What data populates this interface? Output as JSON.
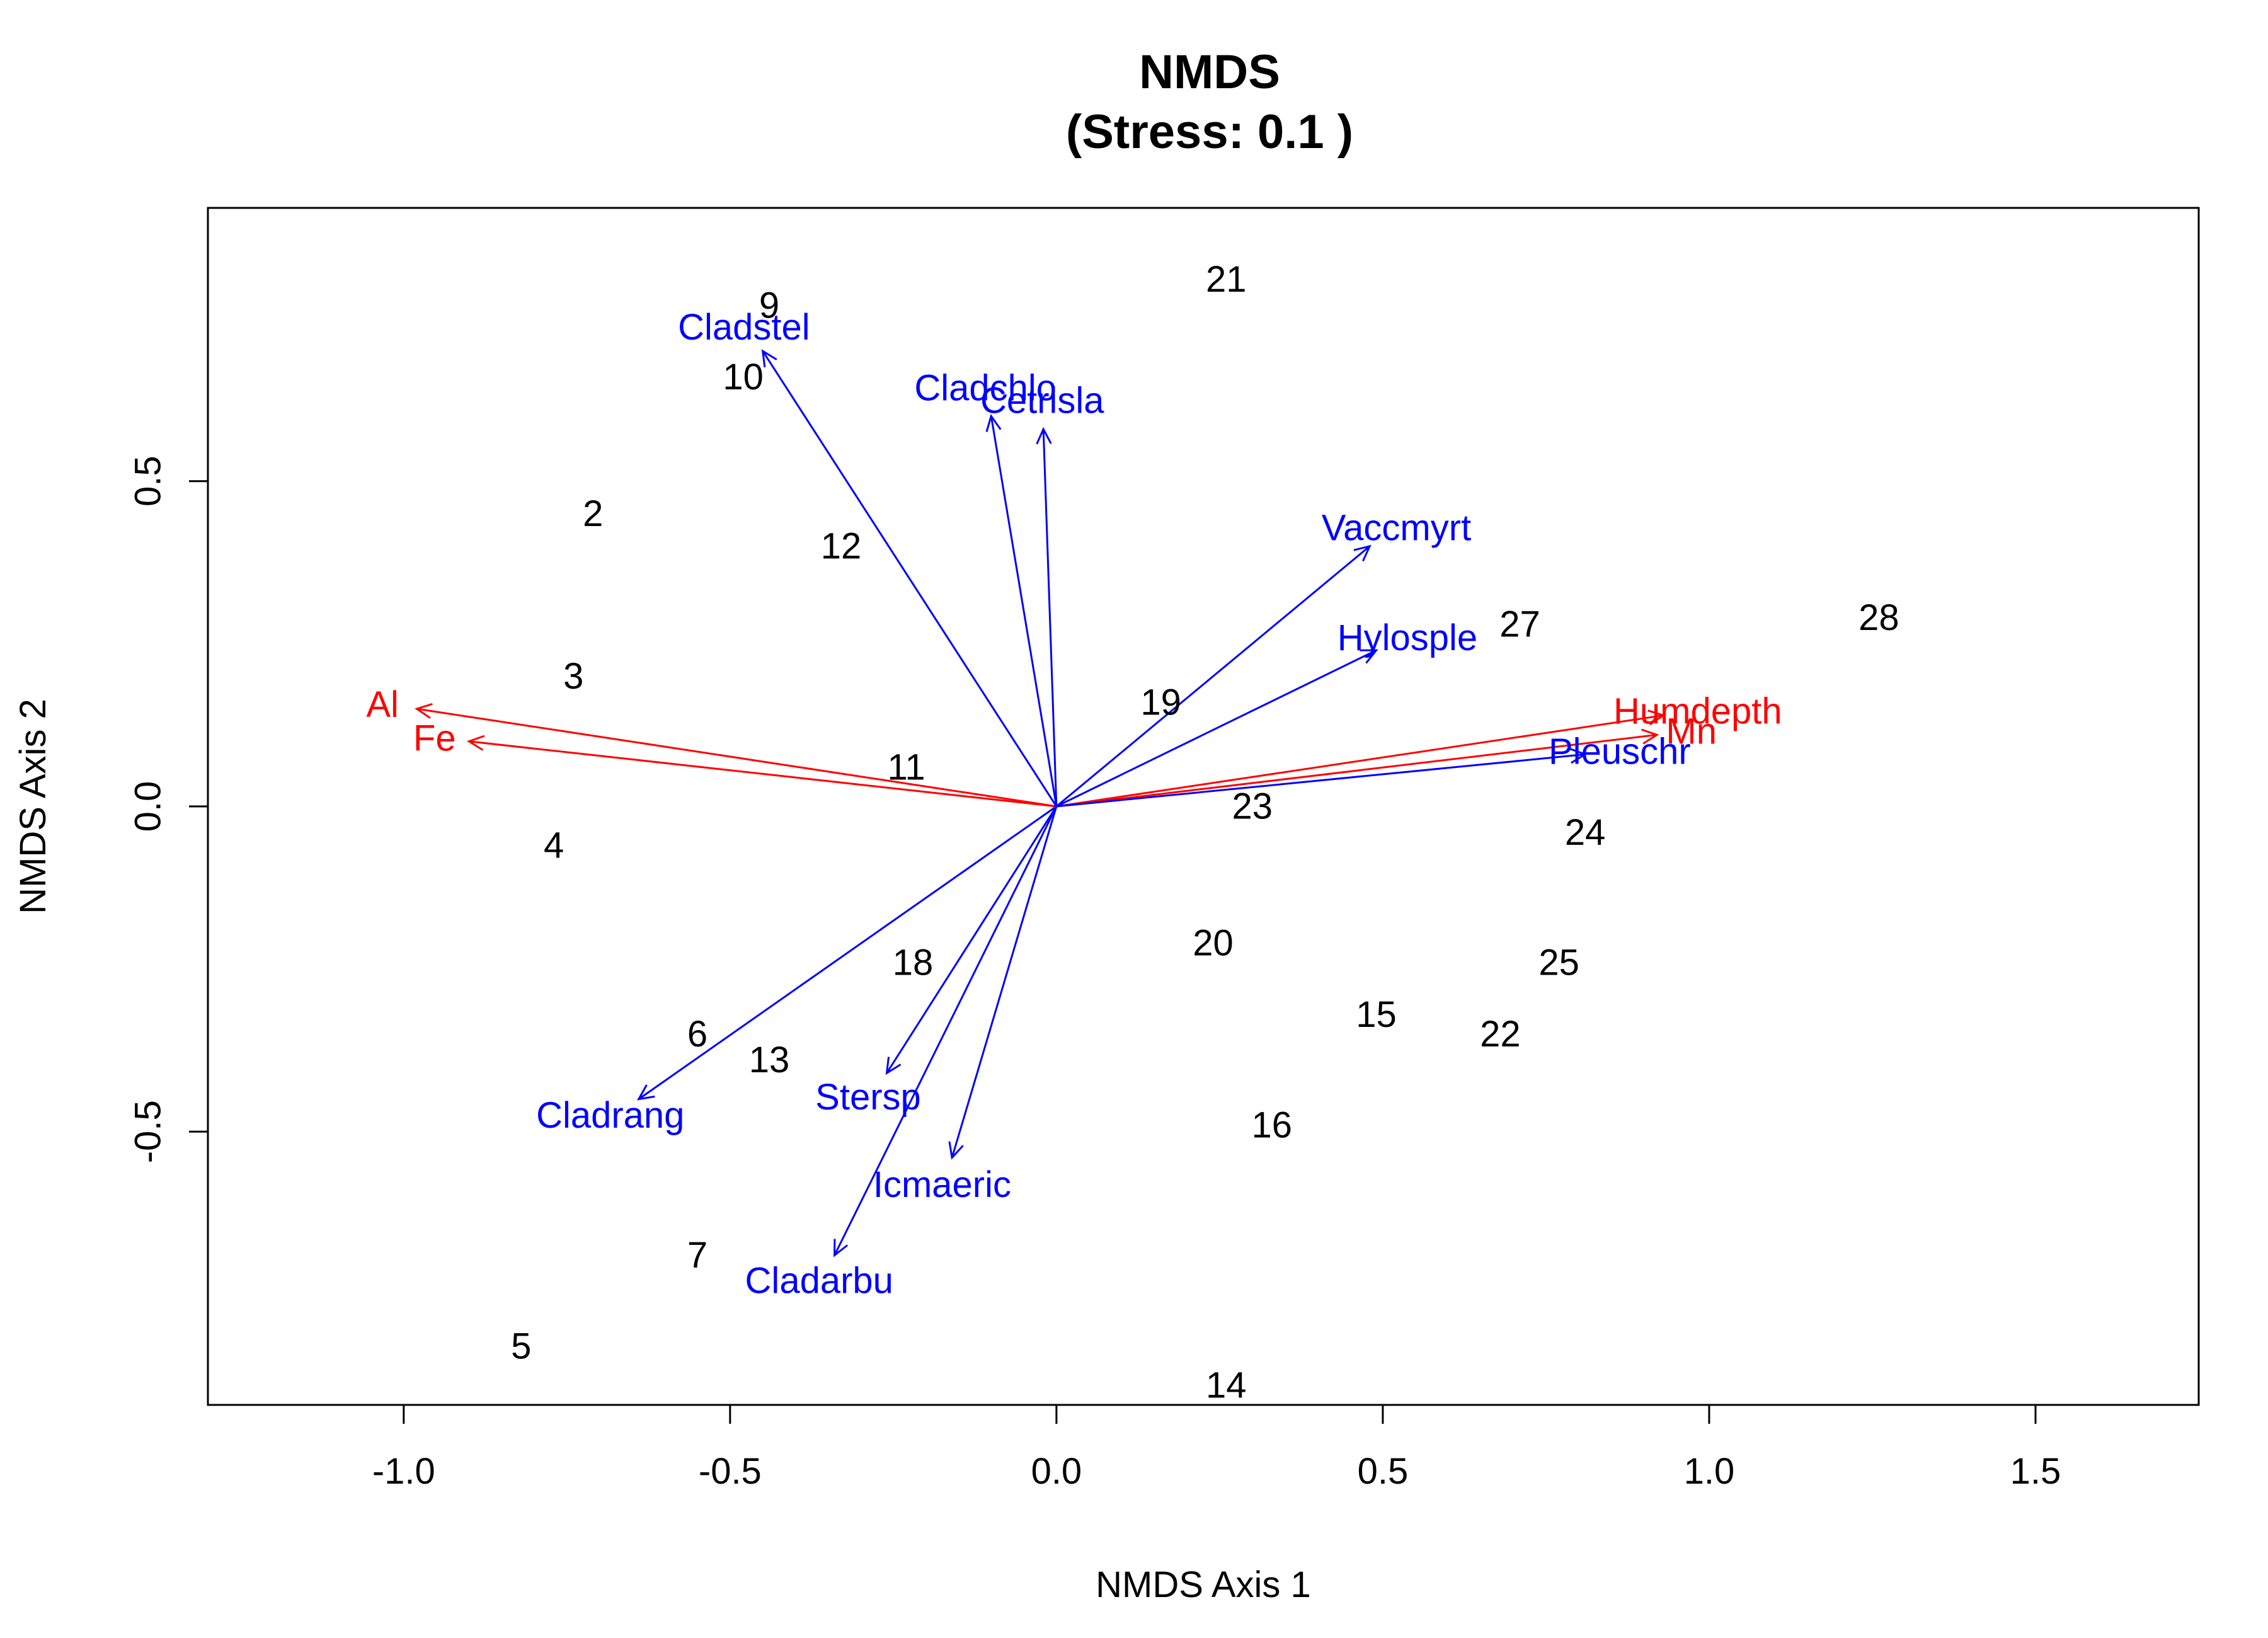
{
  "chart_data": {
    "type": "scatter",
    "title": "NMDS",
    "subtitle": "(Stress: 0.1 )",
    "xlabel": "NMDS Axis 1",
    "ylabel": "NMDS Axis 2",
    "xlim": [
      -1.3,
      1.75
    ],
    "ylim": [
      -0.92,
      0.92
    ],
    "xticks": [
      -1.0,
      -0.5,
      0.0,
      0.5,
      1.0,
      1.5
    ],
    "xtick_labels": [
      "-1.0",
      "-0.5",
      "0.0",
      "0.5",
      "1.0",
      "1.5"
    ],
    "yticks": [
      -0.5,
      0.0,
      0.5
    ],
    "ytick_labels": [
      "-0.5",
      "0.0",
      "0.5"
    ],
    "grid": false,
    "colors": {
      "sites": "#000000",
      "species": "#0000ff",
      "environment": "#ff0000"
    },
    "sites": [
      {
        "label": "9",
        "x": -0.44,
        "y": 0.77
      },
      {
        "label": "10",
        "x": -0.48,
        "y": 0.66
      },
      {
        "label": "21",
        "x": 0.26,
        "y": 0.81
      },
      {
        "label": "2",
        "x": -0.71,
        "y": 0.45
      },
      {
        "label": "12",
        "x": -0.33,
        "y": 0.4
      },
      {
        "label": "28",
        "x": 1.26,
        "y": 0.29
      },
      {
        "label": "27",
        "x": 0.71,
        "y": 0.28
      },
      {
        "label": "3",
        "x": -0.74,
        "y": 0.2
      },
      {
        "label": "19",
        "x": 0.16,
        "y": 0.16
      },
      {
        "label": "11",
        "x": -0.23,
        "y": 0.06
      },
      {
        "label": "23",
        "x": 0.3,
        "y": 0.0
      },
      {
        "label": "4",
        "x": -0.77,
        "y": -0.06
      },
      {
        "label": "24",
        "x": 0.81,
        "y": -0.04
      },
      {
        "label": "20",
        "x": 0.24,
        "y": -0.21
      },
      {
        "label": "18",
        "x": -0.22,
        "y": -0.24
      },
      {
        "label": "25",
        "x": 0.77,
        "y": -0.24
      },
      {
        "label": "15",
        "x": 0.49,
        "y": -0.32
      },
      {
        "label": "22",
        "x": 0.68,
        "y": -0.35
      },
      {
        "label": "6",
        "x": -0.55,
        "y": -0.35
      },
      {
        "label": "13",
        "x": -0.44,
        "y": -0.39
      },
      {
        "label": "16",
        "x": 0.33,
        "y": -0.49
      },
      {
        "label": "7",
        "x": -0.55,
        "y": -0.69
      },
      {
        "label": "5",
        "x": -0.82,
        "y": -0.83
      },
      {
        "label": "14",
        "x": 0.26,
        "y": -0.89
      }
    ],
    "species_vectors": [
      {
        "label": "Cladstel",
        "x": -0.45,
        "y": 0.7
      },
      {
        "label": "Cladchlo",
        "x": -0.1,
        "y": 0.6
      },
      {
        "label": "Cetrisla",
        "x": -0.02,
        "y": 0.58
      },
      {
        "label": "Vaccmyrt",
        "x": 0.48,
        "y": 0.4
      },
      {
        "label": "Hylosple",
        "x": 0.49,
        "y": 0.24
      },
      {
        "label": "Pleuschr",
        "x": 0.81,
        "y": 0.08
      },
      {
        "label": "Cladrang",
        "x": -0.64,
        "y": -0.45
      },
      {
        "label": "Stersp",
        "x": -0.26,
        "y": -0.41
      },
      {
        "label": "Icmaeric",
        "x": -0.16,
        "y": -0.54
      },
      {
        "label": "Cladarbu",
        "x": -0.34,
        "y": -0.69
      }
    ],
    "environment_vectors": [
      {
        "label": "Al",
        "x": -0.98,
        "y": 0.15
      },
      {
        "label": "Fe",
        "x": -0.9,
        "y": 0.1
      },
      {
        "label": "Humdepth",
        "x": 0.93,
        "y": 0.14
      },
      {
        "label": "Mn",
        "x": 0.92,
        "y": 0.11
      }
    ]
  }
}
